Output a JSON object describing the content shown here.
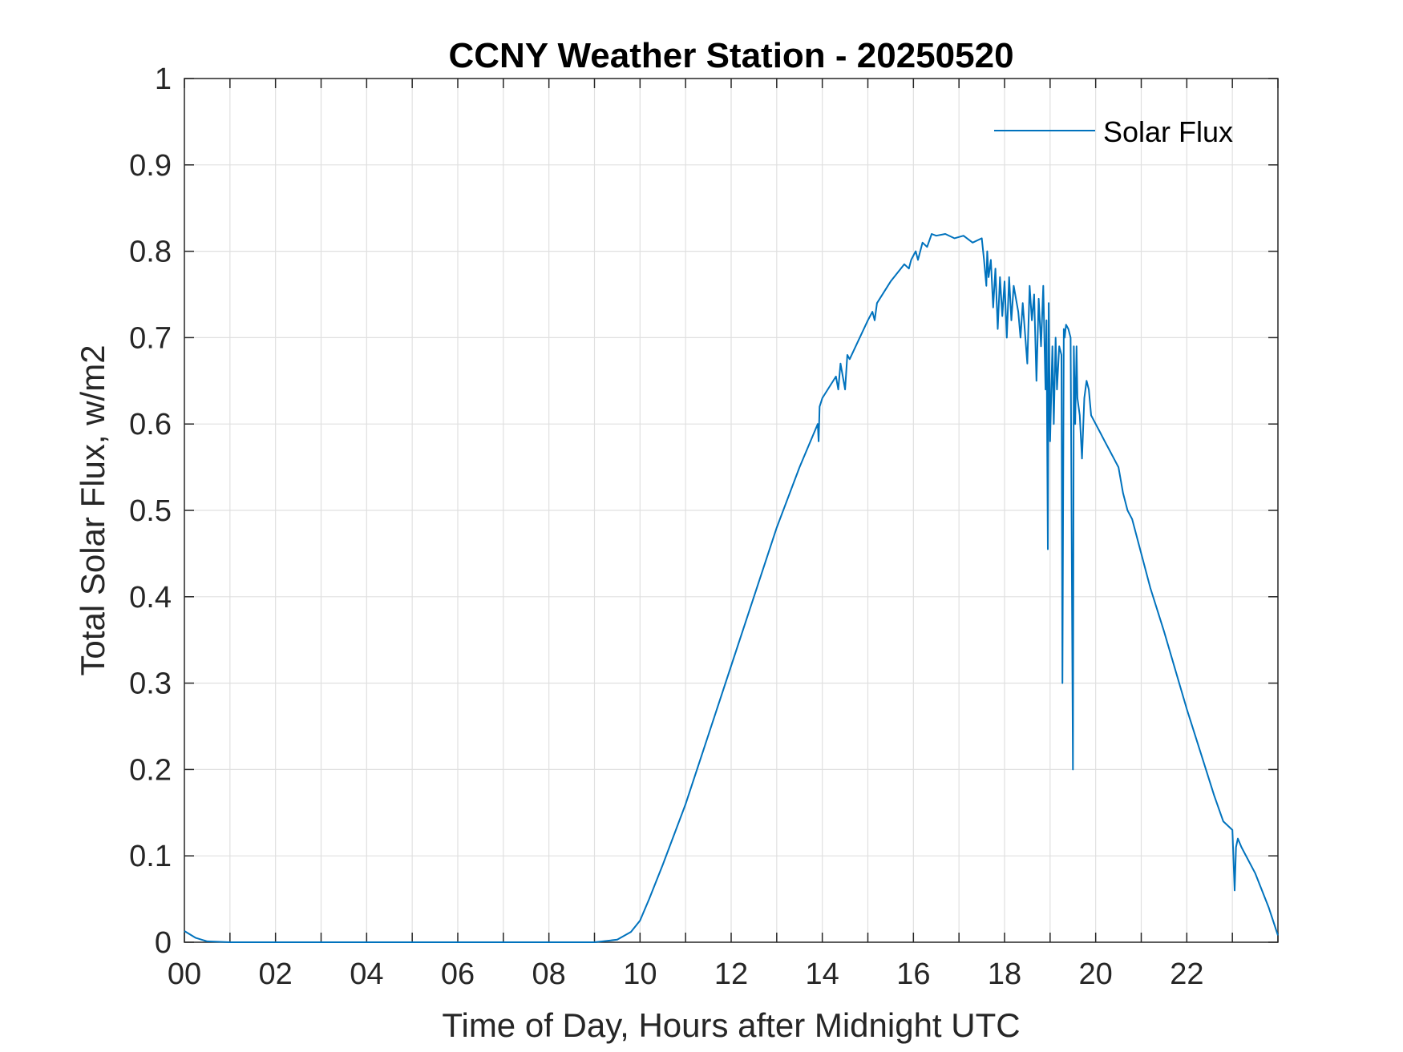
{
  "chart_data": {
    "type": "line",
    "title": "CCNY Weather Station - 20250520",
    "xlabel": "Time of Day, Hours after Midnight UTC",
    "ylabel": "Total Solar Flux, w/m2",
    "xlim": [
      0,
      24
    ],
    "ylim": [
      0,
      1
    ],
    "xticks": [
      0,
      2,
      4,
      6,
      8,
      10,
      12,
      14,
      16,
      18,
      20,
      22
    ],
    "xtick_labels": [
      "00",
      "02",
      "04",
      "06",
      "08",
      "10",
      "12",
      "14",
      "16",
      "18",
      "20",
      "22"
    ],
    "yticks": [
      0,
      0.1,
      0.2,
      0.3,
      0.4,
      0.5,
      0.6,
      0.7,
      0.8,
      0.9,
      1
    ],
    "ytick_labels": [
      "0",
      "0.1",
      "0.2",
      "0.3",
      "0.4",
      "0.5",
      "0.6",
      "0.7",
      "0.8",
      "0.9",
      "1"
    ],
    "grid": true,
    "legend": {
      "position": "top-right",
      "entries": [
        "Solar Flux"
      ]
    },
    "colors": {
      "series": "#0072bd",
      "grid": "#e0e0e0",
      "axis": "#262626"
    },
    "series": [
      {
        "name": "Solar Flux",
        "x": [
          0,
          0.25,
          0.5,
          1,
          2,
          4,
          6,
          8,
          9,
          9.5,
          9.8,
          10,
          10.2,
          10.5,
          11,
          11.5,
          12,
          12.5,
          13,
          13.5,
          13.9,
          13.92,
          13.94,
          14,
          14.3,
          14.35,
          14.4,
          14.5,
          14.55,
          14.6,
          15,
          15.1,
          15.15,
          15.2,
          15.5,
          15.8,
          15.9,
          15.95,
          16,
          16.05,
          16.1,
          16.2,
          16.3,
          16.4,
          16.5,
          16.7,
          16.9,
          17.1,
          17.3,
          17.5,
          17.55,
          17.6,
          17.62,
          17.65,
          17.7,
          17.75,
          17.8,
          17.85,
          17.9,
          17.95,
          18,
          18.05,
          18.1,
          18.15,
          18.2,
          18.3,
          18.35,
          18.4,
          18.5,
          18.55,
          18.6,
          18.65,
          18.7,
          18.75,
          18.8,
          18.85,
          18.9,
          18.92,
          18.95,
          18.97,
          19,
          19.05,
          19.08,
          19.12,
          19.15,
          19.2,
          19.25,
          19.27,
          19.3,
          19.32,
          19.35,
          19.4,
          19.45,
          19.5,
          19.52,
          19.55,
          19.58,
          19.6,
          19.65,
          19.7,
          19.75,
          19.8,
          19.85,
          19.9,
          20,
          20.1,
          20.2,
          20.3,
          20.4,
          20.5,
          20.6,
          20.7,
          20.8,
          21,
          21.2,
          21.5,
          22,
          22.3,
          22.6,
          22.8,
          23,
          23.05,
          23.08,
          23.12,
          23.2,
          23.5,
          23.8,
          24
        ],
        "values": [
          0.013,
          0.005,
          0.001,
          0,
          0,
          0,
          0,
          0,
          0,
          0.003,
          0.012,
          0.025,
          0.05,
          0.09,
          0.16,
          0.24,
          0.32,
          0.4,
          0.48,
          0.55,
          0.6,
          0.58,
          0.62,
          0.63,
          0.655,
          0.64,
          0.67,
          0.64,
          0.68,
          0.675,
          0.72,
          0.73,
          0.72,
          0.74,
          0.765,
          0.785,
          0.78,
          0.79,
          0.795,
          0.8,
          0.79,
          0.81,
          0.805,
          0.82,
          0.818,
          0.82,
          0.815,
          0.818,
          0.81,
          0.815,
          0.79,
          0.76,
          0.8,
          0.77,
          0.79,
          0.735,
          0.78,
          0.71,
          0.77,
          0.725,
          0.765,
          0.7,
          0.77,
          0.72,
          0.76,
          0.73,
          0.7,
          0.74,
          0.67,
          0.76,
          0.72,
          0.75,
          0.65,
          0.745,
          0.69,
          0.76,
          0.64,
          0.72,
          0.455,
          0.74,
          0.58,
          0.69,
          0.6,
          0.7,
          0.64,
          0.69,
          0.68,
          0.3,
          0.71,
          0.7,
          0.715,
          0.71,
          0.7,
          0.2,
          0.69,
          0.6,
          0.69,
          0.63,
          0.61,
          0.56,
          0.63,
          0.65,
          0.64,
          0.61,
          0.6,
          0.59,
          0.58,
          0.57,
          0.56,
          0.55,
          0.52,
          0.5,
          0.49,
          0.45,
          0.41,
          0.36,
          0.27,
          0.22,
          0.17,
          0.14,
          0.13,
          0.06,
          0.11,
          0.12,
          0.11,
          0.08,
          0.04,
          0.008
        ]
      }
    ]
  }
}
